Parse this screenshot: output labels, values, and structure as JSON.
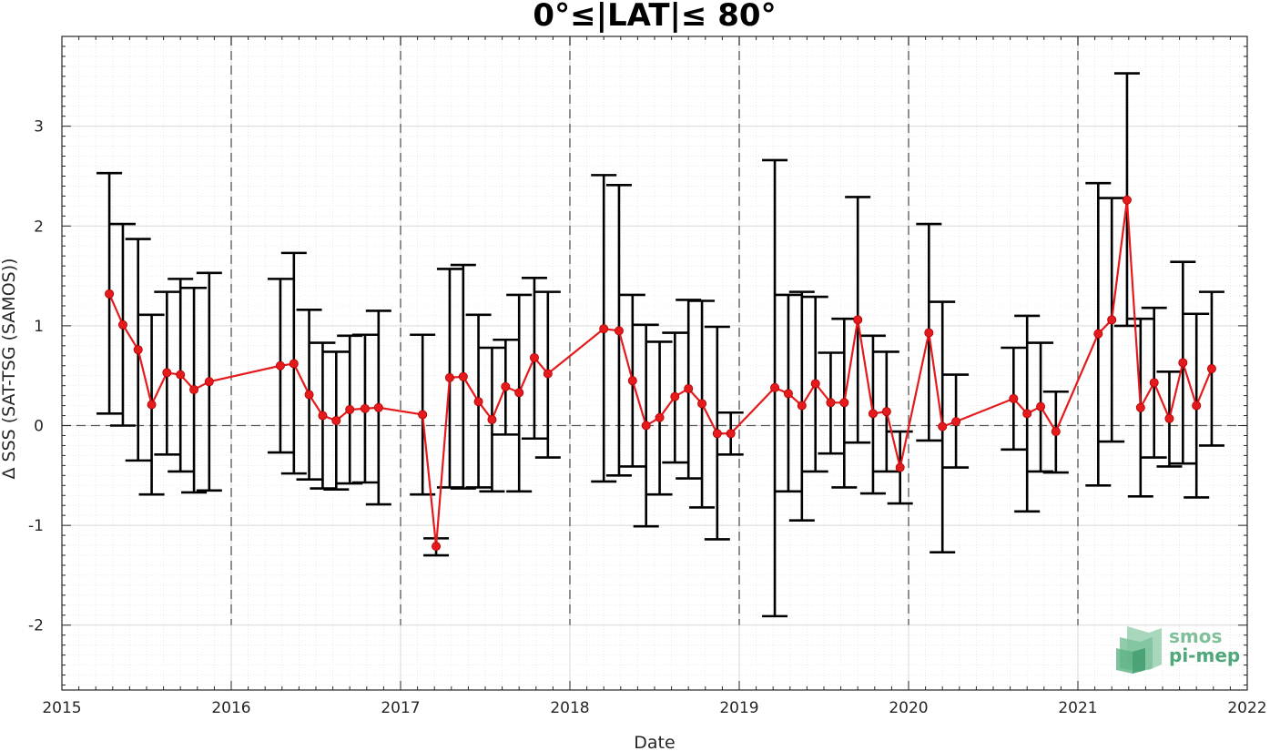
{
  "chart_data": {
    "type": "line",
    "title": "0°≤|LAT|≤ 80°",
    "xlabel": "Date",
    "ylabel": "Δ SSS (SAT-TSG (SAMOS))",
    "xlim": [
      2015,
      2022
    ],
    "ylim": [
      -2.65,
      3.9
    ],
    "x_ticks": [
      2015,
      2016,
      2017,
      2018,
      2019,
      2020,
      2021,
      2022
    ],
    "x_tick_labels": [
      "2015",
      "2016",
      "2017",
      "2018",
      "2019",
      "2020",
      "2021",
      "2022"
    ],
    "y_ticks": [
      -2,
      -1,
      0,
      1,
      2,
      3
    ],
    "y_tick_labels": [
      "-2",
      "-1",
      "0",
      "1",
      "2",
      "3"
    ],
    "grid": true,
    "reference_line_y": 0,
    "year_separators": [
      2016,
      2017,
      2018,
      2019,
      2020,
      2021
    ],
    "colors": {
      "series": "#e41a1c",
      "errorbar": "#000000",
      "grid": "#d9d9d9",
      "reference": "#555555"
    },
    "series": [
      {
        "points": [
          {
            "x": 2015.28,
            "y": 1.32,
            "lo": 0.12,
            "hi": 2.53
          },
          {
            "x": 2015.36,
            "y": 1.01,
            "lo": 0.0,
            "hi": 2.02
          },
          {
            "x": 2015.45,
            "y": 0.76,
            "lo": -0.35,
            "hi": 1.87
          },
          {
            "x": 2015.53,
            "y": 0.21,
            "lo": -0.69,
            "hi": 1.11
          },
          {
            "x": 2015.62,
            "y": 0.53,
            "lo": -0.29,
            "hi": 1.34
          },
          {
            "x": 2015.7,
            "y": 0.51,
            "lo": -0.46,
            "hi": 1.47
          },
          {
            "x": 2015.78,
            "y": 0.36,
            "lo": -0.67,
            "hi": 1.38
          },
          {
            "x": 2015.87,
            "y": 0.44,
            "lo": -0.65,
            "hi": 1.53
          },
          {
            "x": 2016.29,
            "y": 0.6,
            "lo": -0.27,
            "hi": 1.47
          },
          {
            "x": 2016.37,
            "y": 0.62,
            "lo": -0.48,
            "hi": 1.73
          },
          {
            "x": 2016.46,
            "y": 0.31,
            "lo": -0.54,
            "hi": 1.16
          },
          {
            "x": 2016.54,
            "y": 0.1,
            "lo": -0.63,
            "hi": 0.83
          },
          {
            "x": 2016.62,
            "y": 0.05,
            "lo": -0.64,
            "hi": 0.74
          },
          {
            "x": 2016.7,
            "y": 0.16,
            "lo": -0.58,
            "hi": 0.9
          },
          {
            "x": 2016.79,
            "y": 0.17,
            "lo": -0.57,
            "hi": 0.91
          },
          {
            "x": 2016.87,
            "y": 0.18,
            "lo": -0.79,
            "hi": 1.15
          },
          {
            "x": 2017.13,
            "y": 0.11,
            "lo": -0.69,
            "hi": 0.91
          },
          {
            "x": 2017.21,
            "y": -1.21,
            "lo": -1.3,
            "hi": -1.13
          },
          {
            "x": 2017.29,
            "y": 0.48,
            "lo": -0.62,
            "hi": 1.57
          },
          {
            "x": 2017.37,
            "y": 0.49,
            "lo": -0.63,
            "hi": 1.61
          },
          {
            "x": 2017.46,
            "y": 0.24,
            "lo": -0.62,
            "hi": 1.11
          },
          {
            "x": 2017.54,
            "y": 0.06,
            "lo": -0.66,
            "hi": 0.78
          },
          {
            "x": 2017.62,
            "y": 0.39,
            "lo": -0.09,
            "hi": 0.86
          },
          {
            "x": 2017.7,
            "y": 0.33,
            "lo": -0.66,
            "hi": 1.31
          },
          {
            "x": 2017.79,
            "y": 0.68,
            "lo": -0.13,
            "hi": 1.48
          },
          {
            "x": 2017.87,
            "y": 0.52,
            "lo": -0.32,
            "hi": 1.34
          },
          {
            "x": 2018.2,
            "y": 0.97,
            "lo": -0.56,
            "hi": 2.51
          },
          {
            "x": 2018.29,
            "y": 0.95,
            "lo": -0.5,
            "hi": 2.41
          },
          {
            "x": 2018.37,
            "y": 0.45,
            "lo": -0.41,
            "hi": 1.31
          },
          {
            "x": 2018.45,
            "y": 0.0,
            "lo": -1.01,
            "hi": 1.01
          },
          {
            "x": 2018.53,
            "y": 0.08,
            "lo": -0.69,
            "hi": 0.84
          },
          {
            "x": 2018.62,
            "y": 0.29,
            "lo": -0.37,
            "hi": 0.93
          },
          {
            "x": 2018.7,
            "y": 0.37,
            "lo": -0.53,
            "hi": 1.26
          },
          {
            "x": 2018.78,
            "y": 0.22,
            "lo": -0.82,
            "hi": 1.25
          },
          {
            "x": 2018.87,
            "y": -0.08,
            "lo": -1.14,
            "hi": 0.99
          },
          {
            "x": 2018.95,
            "y": -0.08,
            "lo": -0.29,
            "hi": 0.13
          },
          {
            "x": 2019.21,
            "y": 0.38,
            "lo": -1.91,
            "hi": 2.66
          },
          {
            "x": 2019.29,
            "y": 0.32,
            "lo": -0.66,
            "hi": 1.31
          },
          {
            "x": 2019.37,
            "y": 0.2,
            "lo": -0.95,
            "hi": 1.34
          },
          {
            "x": 2019.45,
            "y": 0.42,
            "lo": -0.46,
            "hi": 1.29
          },
          {
            "x": 2019.54,
            "y": 0.23,
            "lo": -0.28,
            "hi": 0.73
          },
          {
            "x": 2019.62,
            "y": 0.23,
            "lo": -0.62,
            "hi": 1.07
          },
          {
            "x": 2019.7,
            "y": 1.06,
            "lo": -0.17,
            "hi": 2.29
          },
          {
            "x": 2019.79,
            "y": 0.12,
            "lo": -0.68,
            "hi": 0.9
          },
          {
            "x": 2019.87,
            "y": 0.14,
            "lo": -0.46,
            "hi": 0.74
          },
          {
            "x": 2019.95,
            "y": -0.42,
            "lo": -0.78,
            "hi": -0.06
          },
          {
            "x": 2020.12,
            "y": 0.93,
            "lo": -0.15,
            "hi": 2.02
          },
          {
            "x": 2020.2,
            "y": -0.01,
            "lo": -1.27,
            "hi": 1.24
          },
          {
            "x": 2020.28,
            "y": 0.04,
            "lo": -0.42,
            "hi": 0.51
          },
          {
            "x": 2020.62,
            "y": 0.27,
            "lo": -0.24,
            "hi": 0.78
          },
          {
            "x": 2020.7,
            "y": 0.12,
            "lo": -0.86,
            "hi": 1.1
          },
          {
            "x": 2020.78,
            "y": 0.19,
            "lo": -0.46,
            "hi": 0.83
          },
          {
            "x": 2020.87,
            "y": -0.06,
            "lo": -0.47,
            "hi": 0.34
          },
          {
            "x": 2021.12,
            "y": 0.92,
            "lo": -0.6,
            "hi": 2.43
          },
          {
            "x": 2021.2,
            "y": 1.06,
            "lo": -0.16,
            "hi": 2.28
          },
          {
            "x": 2021.29,
            "y": 2.26,
            "lo": 1.0,
            "hi": 3.53
          },
          {
            "x": 2021.37,
            "y": 0.18,
            "lo": -0.71,
            "hi": 1.07
          },
          {
            "x": 2021.45,
            "y": 0.43,
            "lo": -0.32,
            "hi": 1.18
          },
          {
            "x": 2021.54,
            "y": 0.07,
            "lo": -0.41,
            "hi": 0.54
          },
          {
            "x": 2021.62,
            "y": 0.63,
            "lo": -0.38,
            "hi": 1.64
          },
          {
            "x": 2021.7,
            "y": 0.2,
            "lo": -0.72,
            "hi": 1.12
          },
          {
            "x": 2021.79,
            "y": 0.57,
            "lo": -0.2,
            "hi": 1.34
          }
        ]
      }
    ]
  },
  "logo": {
    "line1": "smos",
    "line2": "pi-mep"
  }
}
